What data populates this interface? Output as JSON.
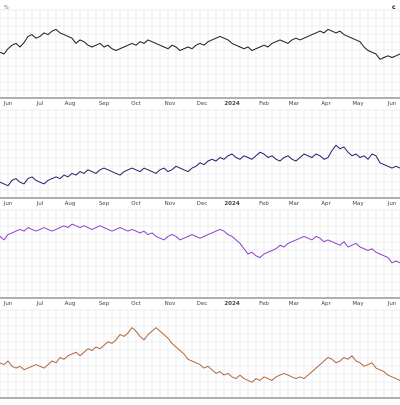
{
  "chart_data": [
    {
      "type": "line",
      "title": "",
      "xlabel": "",
      "ylabel": "",
      "color": "#1a1a1a",
      "y_range": [
        0,
        1
      ],
      "grid": true,
      "top_left_label": "%",
      "top_right_label": "c",
      "x_ticks": [
        "Jun",
        "Jul",
        "Aug",
        "Sep",
        "Oct",
        "Nov",
        "Dec",
        "2024",
        "Feb",
        "Mar",
        "Apr",
        "May",
        "Jun"
      ],
      "x": [
        0,
        4,
        8,
        12,
        16,
        20,
        24,
        28,
        32,
        36,
        40,
        44,
        48,
        52,
        56,
        60,
        64,
        68,
        72,
        76,
        80,
        84,
        88,
        92,
        96,
        100,
        104,
        108,
        112,
        116,
        120,
        124,
        128,
        132,
        136,
        140,
        144,
        148,
        152,
        156,
        160,
        164,
        168,
        172,
        176,
        180,
        184,
        188,
        192,
        196,
        200,
        204,
        208,
        212,
        216,
        220,
        224,
        228,
        232,
        236,
        240,
        244,
        248,
        252,
        256,
        260,
        264,
        268,
        272,
        276,
        280,
        284,
        288,
        292,
        296,
        300,
        304,
        308,
        312,
        316,
        320,
        324,
        328,
        332,
        336,
        340,
        344,
        348,
        352,
        356,
        360,
        364,
        368,
        372,
        376,
        380,
        384,
        388,
        392,
        396,
        400
      ],
      "values": [
        0.52,
        0.5,
        0.56,
        0.6,
        0.62,
        0.58,
        0.63,
        0.7,
        0.72,
        0.68,
        0.7,
        0.74,
        0.72,
        0.76,
        0.78,
        0.74,
        0.72,
        0.7,
        0.68,
        0.62,
        0.66,
        0.64,
        0.6,
        0.58,
        0.6,
        0.62,
        0.58,
        0.6,
        0.56,
        0.54,
        0.56,
        0.58,
        0.6,
        0.62,
        0.6,
        0.64,
        0.62,
        0.66,
        0.64,
        0.62,
        0.6,
        0.58,
        0.56,
        0.6,
        0.58,
        0.54,
        0.56,
        0.58,
        0.56,
        0.6,
        0.62,
        0.6,
        0.64,
        0.66,
        0.68,
        0.7,
        0.68,
        0.66,
        0.62,
        0.6,
        0.58,
        0.56,
        0.58,
        0.54,
        0.56,
        0.58,
        0.6,
        0.58,
        0.62,
        0.64,
        0.66,
        0.64,
        0.62,
        0.66,
        0.68,
        0.66,
        0.68,
        0.7,
        0.72,
        0.74,
        0.76,
        0.74,
        0.78,
        0.76,
        0.74,
        0.76,
        0.72,
        0.7,
        0.68,
        0.66,
        0.64,
        0.58,
        0.54,
        0.52,
        0.5,
        0.44,
        0.46,
        0.48,
        0.46,
        0.48,
        0.5
      ]
    },
    {
      "type": "line",
      "title": "",
      "xlabel": "",
      "ylabel": "",
      "color": "#1f1f6e",
      "y_range": [
        0,
        1
      ],
      "grid": true,
      "x_ticks": [
        "Jun",
        "Jul",
        "Aug",
        "Sep",
        "Oct",
        "Nov",
        "Dec",
        "2024",
        "Feb",
        "Mar",
        "Apr",
        "May",
        "Jun"
      ],
      "x": [
        0,
        4,
        8,
        12,
        16,
        20,
        24,
        28,
        32,
        36,
        40,
        44,
        48,
        52,
        56,
        60,
        64,
        68,
        72,
        76,
        80,
        84,
        88,
        92,
        96,
        100,
        104,
        108,
        112,
        116,
        120,
        124,
        128,
        132,
        136,
        140,
        144,
        148,
        152,
        156,
        160,
        164,
        168,
        172,
        176,
        180,
        184,
        188,
        192,
        196,
        200,
        204,
        208,
        212,
        216,
        220,
        224,
        228,
        232,
        236,
        240,
        244,
        248,
        252,
        256,
        260,
        264,
        268,
        272,
        276,
        280,
        284,
        288,
        292,
        296,
        300,
        304,
        308,
        312,
        316,
        320,
        324,
        328,
        332,
        336,
        340,
        344,
        348,
        352,
        356,
        360,
        364,
        368,
        372,
        376,
        380,
        384,
        388,
        392,
        396,
        400
      ],
      "values": [
        0.18,
        0.16,
        0.14,
        0.2,
        0.22,
        0.18,
        0.16,
        0.22,
        0.24,
        0.2,
        0.18,
        0.16,
        0.2,
        0.22,
        0.24,
        0.22,
        0.26,
        0.24,
        0.28,
        0.26,
        0.3,
        0.28,
        0.32,
        0.3,
        0.28,
        0.32,
        0.34,
        0.32,
        0.3,
        0.28,
        0.26,
        0.3,
        0.32,
        0.34,
        0.32,
        0.3,
        0.34,
        0.32,
        0.3,
        0.28,
        0.32,
        0.34,
        0.3,
        0.32,
        0.36,
        0.34,
        0.32,
        0.3,
        0.34,
        0.36,
        0.4,
        0.38,
        0.42,
        0.44,
        0.42,
        0.46,
        0.44,
        0.48,
        0.5,
        0.46,
        0.44,
        0.48,
        0.46,
        0.44,
        0.48,
        0.52,
        0.5,
        0.46,
        0.48,
        0.44,
        0.42,
        0.46,
        0.48,
        0.44,
        0.42,
        0.46,
        0.5,
        0.48,
        0.46,
        0.5,
        0.48,
        0.44,
        0.46,
        0.54,
        0.6,
        0.56,
        0.58,
        0.52,
        0.48,
        0.5,
        0.46,
        0.48,
        0.44,
        0.5,
        0.48,
        0.4,
        0.38,
        0.36,
        0.34,
        0.36,
        0.34
      ]
    },
    {
      "type": "line",
      "title": "",
      "xlabel": "",
      "ylabel": "",
      "color": "#8a3fd1",
      "y_range": [
        0,
        1
      ],
      "grid": true,
      "x_ticks": [
        "Jun",
        "Jul",
        "Aug",
        "Sep",
        "Oct",
        "Nov",
        "Dec",
        "2024",
        "Feb",
        "Mar",
        "Apr",
        "May",
        "Jun"
      ],
      "x": [
        0,
        4,
        8,
        12,
        16,
        20,
        24,
        28,
        32,
        36,
        40,
        44,
        48,
        52,
        56,
        60,
        64,
        68,
        72,
        76,
        80,
        84,
        88,
        92,
        96,
        100,
        104,
        108,
        112,
        116,
        120,
        124,
        128,
        132,
        136,
        140,
        144,
        148,
        152,
        156,
        160,
        164,
        168,
        172,
        176,
        180,
        184,
        188,
        192,
        196,
        200,
        204,
        208,
        212,
        216,
        220,
        224,
        228,
        232,
        236,
        240,
        244,
        248,
        252,
        256,
        260,
        264,
        268,
        272,
        276,
        280,
        284,
        288,
        292,
        296,
        300,
        304,
        308,
        312,
        316,
        320,
        324,
        328,
        332,
        336,
        340,
        344,
        348,
        352,
        356,
        360,
        364,
        368,
        372,
        376,
        380,
        384,
        388,
        392,
        396,
        400
      ],
      "values": [
        0.7,
        0.66,
        0.72,
        0.74,
        0.76,
        0.78,
        0.76,
        0.8,
        0.78,
        0.76,
        0.78,
        0.8,
        0.78,
        0.76,
        0.78,
        0.8,
        0.82,
        0.8,
        0.84,
        0.82,
        0.8,
        0.82,
        0.8,
        0.78,
        0.8,
        0.82,
        0.8,
        0.78,
        0.76,
        0.78,
        0.8,
        0.78,
        0.76,
        0.78,
        0.76,
        0.74,
        0.76,
        0.72,
        0.74,
        0.7,
        0.68,
        0.66,
        0.7,
        0.72,
        0.7,
        0.66,
        0.68,
        0.7,
        0.72,
        0.7,
        0.68,
        0.7,
        0.72,
        0.74,
        0.76,
        0.78,
        0.76,
        0.72,
        0.7,
        0.66,
        0.62,
        0.56,
        0.5,
        0.52,
        0.48,
        0.46,
        0.5,
        0.52,
        0.54,
        0.56,
        0.6,
        0.58,
        0.62,
        0.64,
        0.66,
        0.68,
        0.7,
        0.68,
        0.66,
        0.7,
        0.68,
        0.64,
        0.66,
        0.64,
        0.62,
        0.6,
        0.64,
        0.58,
        0.6,
        0.62,
        0.58,
        0.56,
        0.54,
        0.56,
        0.52,
        0.5,
        0.48,
        0.46,
        0.4,
        0.42,
        0.4
      ]
    },
    {
      "type": "line",
      "title": "",
      "xlabel": "",
      "ylabel": "",
      "color": "#b0683d",
      "y_range": [
        0,
        1
      ],
      "grid": true,
      "x_ticks": [
        "Jun",
        "Jul",
        "Aug",
        "Sep",
        "Oct",
        "Nov",
        "Dec",
        "2024",
        "Feb",
        "Mar",
        "Apr",
        "May",
        "Jun"
      ],
      "x": [
        0,
        4,
        8,
        12,
        16,
        20,
        24,
        28,
        32,
        36,
        40,
        44,
        48,
        52,
        56,
        60,
        64,
        68,
        72,
        76,
        80,
        84,
        88,
        92,
        96,
        100,
        104,
        108,
        112,
        116,
        120,
        124,
        128,
        132,
        136,
        140,
        144,
        148,
        152,
        156,
        160,
        164,
        168,
        172,
        176,
        180,
        184,
        188,
        192,
        196,
        200,
        204,
        208,
        212,
        216,
        220,
        224,
        228,
        232,
        236,
        240,
        244,
        248,
        252,
        256,
        260,
        264,
        268,
        272,
        276,
        280,
        284,
        288,
        292,
        296,
        300,
        304,
        308,
        312,
        316,
        320,
        324,
        328,
        332,
        336,
        340,
        344,
        348,
        352,
        356,
        360,
        364,
        368,
        372,
        376,
        380,
        384,
        388,
        392,
        396,
        400
      ],
      "values": [
        0.4,
        0.38,
        0.42,
        0.36,
        0.34,
        0.36,
        0.32,
        0.34,
        0.36,
        0.38,
        0.36,
        0.34,
        0.38,
        0.42,
        0.4,
        0.46,
        0.44,
        0.48,
        0.5,
        0.52,
        0.48,
        0.52,
        0.56,
        0.54,
        0.58,
        0.56,
        0.6,
        0.64,
        0.62,
        0.66,
        0.72,
        0.7,
        0.74,
        0.8,
        0.76,
        0.7,
        0.66,
        0.72,
        0.76,
        0.8,
        0.76,
        0.72,
        0.68,
        0.62,
        0.58,
        0.54,
        0.5,
        0.44,
        0.42,
        0.4,
        0.38,
        0.34,
        0.36,
        0.32,
        0.28,
        0.3,
        0.26,
        0.28,
        0.24,
        0.22,
        0.26,
        0.22,
        0.2,
        0.18,
        0.22,
        0.2,
        0.24,
        0.22,
        0.2,
        0.24,
        0.26,
        0.28,
        0.26,
        0.24,
        0.22,
        0.24,
        0.22,
        0.26,
        0.3,
        0.34,
        0.38,
        0.42,
        0.46,
        0.44,
        0.4,
        0.42,
        0.46,
        0.44,
        0.48,
        0.42,
        0.4,
        0.36,
        0.38,
        0.4,
        0.34,
        0.32,
        0.3,
        0.26,
        0.24,
        0.22,
        0.2
      ]
    }
  ]
}
